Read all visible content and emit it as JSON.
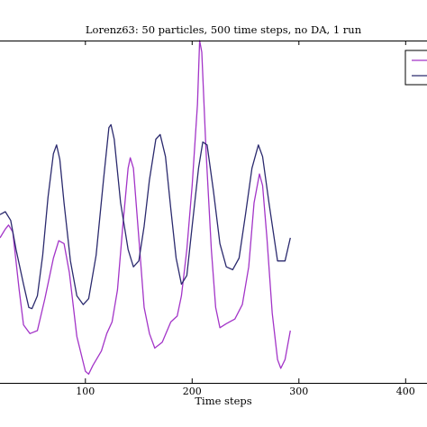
{
  "chart_data": {
    "type": "line",
    "title": "Lorenz63: 50 particles, 500 time steps, no DA, 1 run",
    "xlabel": "Time steps",
    "ylabel": "",
    "xlim": [
      20,
      420
    ],
    "ylim": [
      -2.5,
      3.4
    ],
    "grid": false,
    "legend_position": "top-right",
    "x_ticks": [
      "100",
      "200",
      "300",
      "400"
    ],
    "series": [
      {
        "color": "#a335c8",
        "points": [
          [
            20,
            0.0
          ],
          [
            25,
            0.15
          ],
          [
            28,
            0.22
          ],
          [
            32,
            0.1
          ],
          [
            38,
            -0.9
          ],
          [
            42,
            -1.5
          ],
          [
            48,
            -1.65
          ],
          [
            55,
            -1.6
          ],
          [
            62,
            -1.05
          ],
          [
            70,
            -0.35
          ],
          [
            75,
            -0.05
          ],
          [
            80,
            -0.1
          ],
          [
            85,
            -0.6
          ],
          [
            92,
            -1.7
          ],
          [
            100,
            -2.3
          ],
          [
            103,
            -2.35
          ],
          [
            107,
            -2.2
          ],
          [
            115,
            -1.95
          ],
          [
            120,
            -1.65
          ],
          [
            125,
            -1.45
          ],
          [
            130,
            -0.9
          ],
          [
            135,
            0.2
          ],
          [
            140,
            1.2
          ],
          [
            142,
            1.38
          ],
          [
            145,
            1.2
          ],
          [
            150,
            0.0
          ],
          [
            155,
            -1.2
          ],
          [
            160,
            -1.65
          ],
          [
            165,
            -1.9
          ],
          [
            172,
            -1.8
          ],
          [
            180,
            -1.45
          ],
          [
            186,
            -1.35
          ],
          [
            190,
            -1.0
          ],
          [
            195,
            -0.2
          ],
          [
            200,
            0.9
          ],
          [
            205,
            2.3
          ],
          [
            207,
            3.4
          ],
          [
            209,
            3.2
          ],
          [
            213,
            1.5
          ],
          [
            218,
            -0.2
          ],
          [
            222,
            -1.2
          ],
          [
            226,
            -1.55
          ],
          [
            232,
            -1.48
          ],
          [
            240,
            -1.4
          ],
          [
            247,
            -1.15
          ],
          [
            253,
            -0.5
          ],
          [
            258,
            0.6
          ],
          [
            263,
            1.1
          ],
          [
            266,
            0.9
          ],
          [
            270,
            0.0
          ],
          [
            275,
            -1.3
          ],
          [
            280,
            -2.1
          ],
          [
            283,
            -2.25
          ],
          [
            287,
            -2.1
          ],
          [
            292,
            -1.6
          ]
        ]
      },
      {
        "color": "#2b2a6e",
        "points": [
          [
            20,
            0.4
          ],
          [
            25,
            0.45
          ],
          [
            30,
            0.3
          ],
          [
            35,
            -0.2
          ],
          [
            42,
            -0.8
          ],
          [
            47,
            -1.2
          ],
          [
            50,
            -1.22
          ],
          [
            55,
            -1.0
          ],
          [
            60,
            -0.3
          ],
          [
            65,
            0.7
          ],
          [
            70,
            1.45
          ],
          [
            73,
            1.6
          ],
          [
            76,
            1.35
          ],
          [
            80,
            0.6
          ],
          [
            86,
            -0.4
          ],
          [
            92,
            -1.0
          ],
          [
            98,
            -1.15
          ],
          [
            103,
            -1.05
          ],
          [
            110,
            -0.3
          ],
          [
            117,
            1.0
          ],
          [
            122,
            1.9
          ],
          [
            124,
            1.95
          ],
          [
            127,
            1.7
          ],
          [
            133,
            0.6
          ],
          [
            140,
            -0.2
          ],
          [
            145,
            -0.5
          ],
          [
            150,
            -0.4
          ],
          [
            155,
            0.2
          ],
          [
            160,
            1.0
          ],
          [
            166,
            1.7
          ],
          [
            170,
            1.78
          ],
          [
            175,
            1.4
          ],
          [
            180,
            0.5
          ],
          [
            185,
            -0.35
          ],
          [
            190,
            -0.8
          ],
          [
            195,
            -0.65
          ],
          [
            200,
            0.2
          ],
          [
            206,
            1.2
          ],
          [
            210,
            1.65
          ],
          [
            214,
            1.6
          ],
          [
            220,
            0.8
          ],
          [
            226,
            -0.1
          ],
          [
            232,
            -0.5
          ],
          [
            238,
            -0.55
          ],
          [
            244,
            -0.35
          ],
          [
            250,
            0.4
          ],
          [
            256,
            1.2
          ],
          [
            262,
            1.6
          ],
          [
            266,
            1.4
          ],
          [
            272,
            0.6
          ],
          [
            280,
            -0.4
          ],
          [
            287,
            -0.4
          ],
          [
            292,
            0.0
          ]
        ]
      }
    ]
  }
}
